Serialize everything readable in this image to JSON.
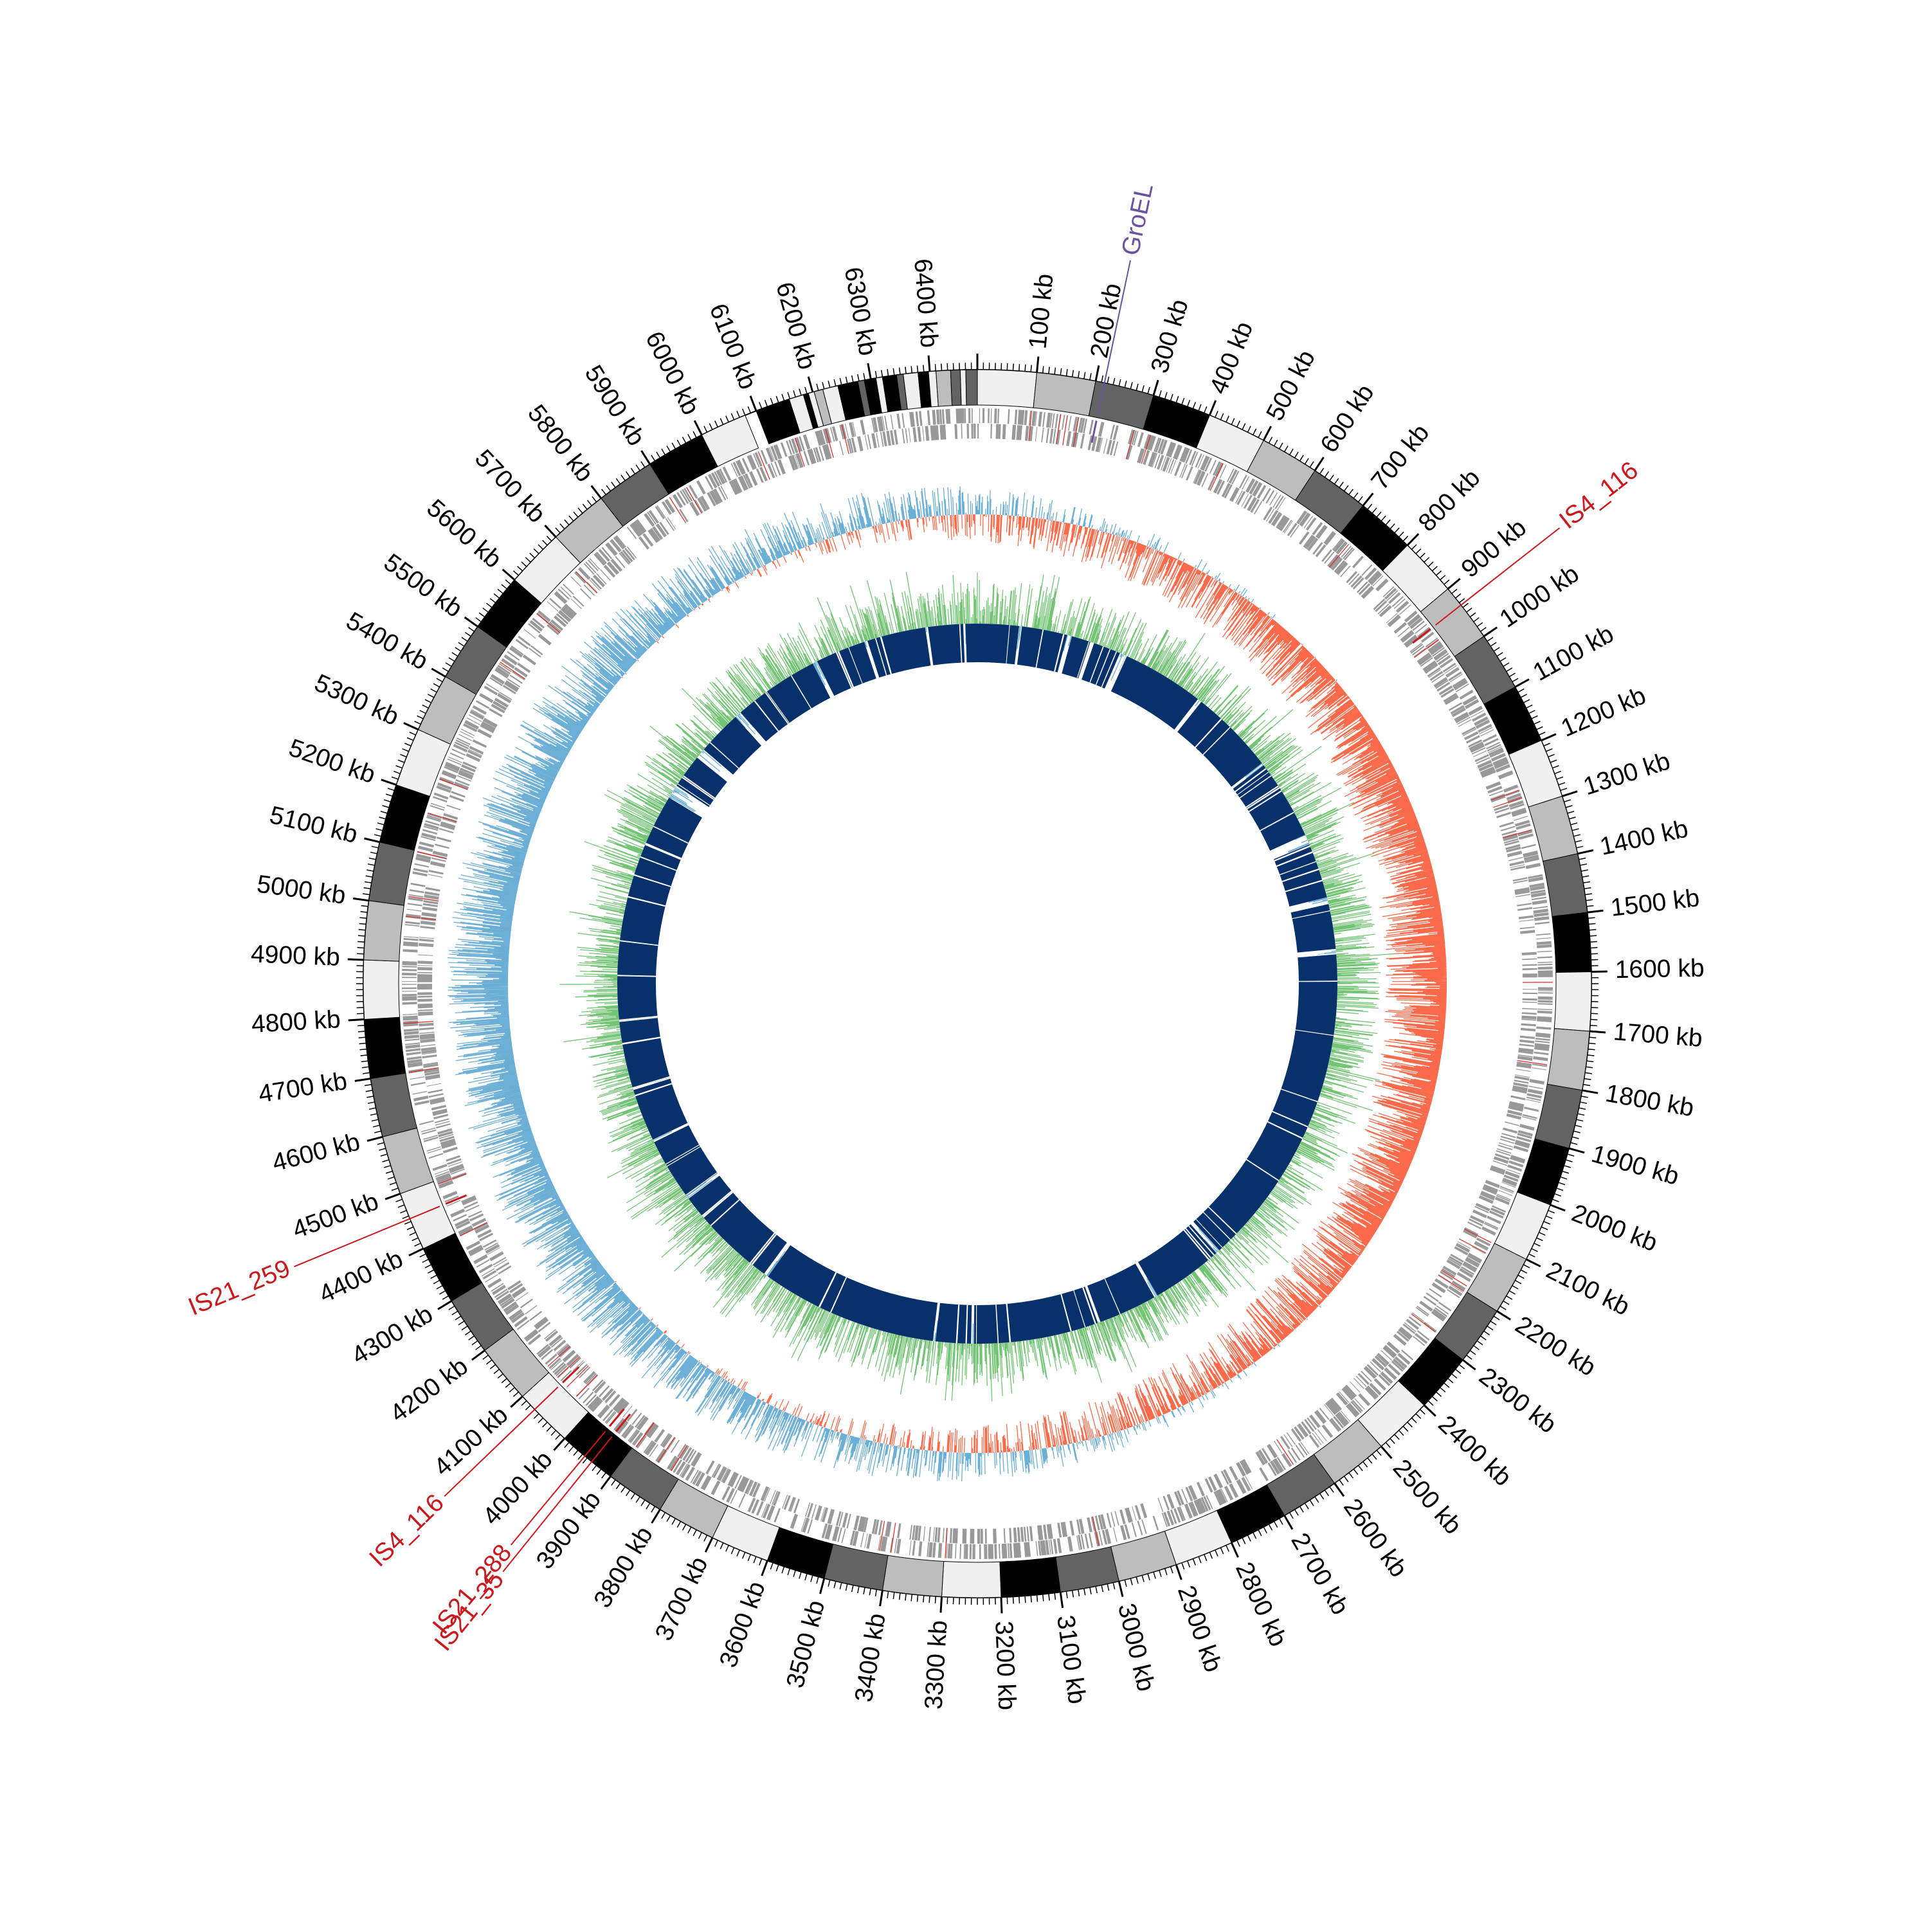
{
  "genome": {
    "total_kb": 6480,
    "rotation_deg": 0,
    "direction": "clockwise"
  },
  "ticks": {
    "interval_kb": 100,
    "minor_interval_kb": 10,
    "labels": [
      "100 kb",
      "200 kb",
      "300 kb",
      "400 kb",
      "500 kb",
      "600 kb",
      "700 kb",
      "800 kb",
      "900 kb",
      "1000 kb",
      "1100 kb",
      "1200 kb",
      "1300 kb",
      "1400 kb",
      "1500 kb",
      "1600 kb",
      "1700 kb",
      "1800 kb",
      "1900 kb",
      "2000 kb",
      "2100 kb",
      "2200 kb",
      "2300 kb",
      "2400 kb",
      "2500 kb",
      "2600 kb",
      "2700 kb",
      "2800 kb",
      "2900 kb",
      "3000 kb",
      "3100 kb",
      "3200 kb",
      "3300 kb",
      "3400 kb",
      "3500 kb",
      "3600 kb",
      "3700 kb",
      "3800 kb",
      "3900 kb",
      "4000 kb",
      "4100 kb",
      "4200 kb",
      "4300 kb",
      "4400 kb",
      "4500 kb",
      "4600 kb",
      "4700 kb",
      "4800 kb",
      "4900 kb",
      "5000 kb",
      "5100 kb",
      "5200 kb",
      "5300 kb",
      "5400 kb",
      "5500 kb",
      "5600 kb",
      "5700 kb",
      "5800 kb",
      "5900 kb",
      "6000 kb",
      "6100 kb",
      "6200 kb",
      "6300 kb",
      "6400 kb"
    ]
  },
  "annotations": [
    {
      "label": "GroEL",
      "position_kb": 215,
      "color": "#6a51a3"
    },
    {
      "label": "IS4_116",
      "position_kb": 935,
      "color": "#cb181d"
    },
    {
      "label": "IS21_259",
      "position_kb": 4455,
      "color": "#cb181d"
    },
    {
      "label": "IS4_116",
      "position_kb": 4070,
      "color": "#cb181d"
    },
    {
      "label": "IS21_288",
      "position_kb": 3955,
      "color": "#cb181d"
    },
    {
      "label": "IS21_35",
      "position_kb": 3940,
      "color": "#cb181d"
    }
  ],
  "tracks": {
    "ideogram_colors": [
      "#f0f0f0",
      "#bdbdbd",
      "#636363",
      "#000000"
    ],
    "gene_color": "#999999",
    "gene_highlight_color": "#de2d26",
    "skew_positive_color": "#6baed6",
    "skew_negative_color": "#fb6a4a",
    "gc_positive_color": "#74c476",
    "gc_negative_color": "#6baed6",
    "blocks_color": "#08306b"
  }
}
